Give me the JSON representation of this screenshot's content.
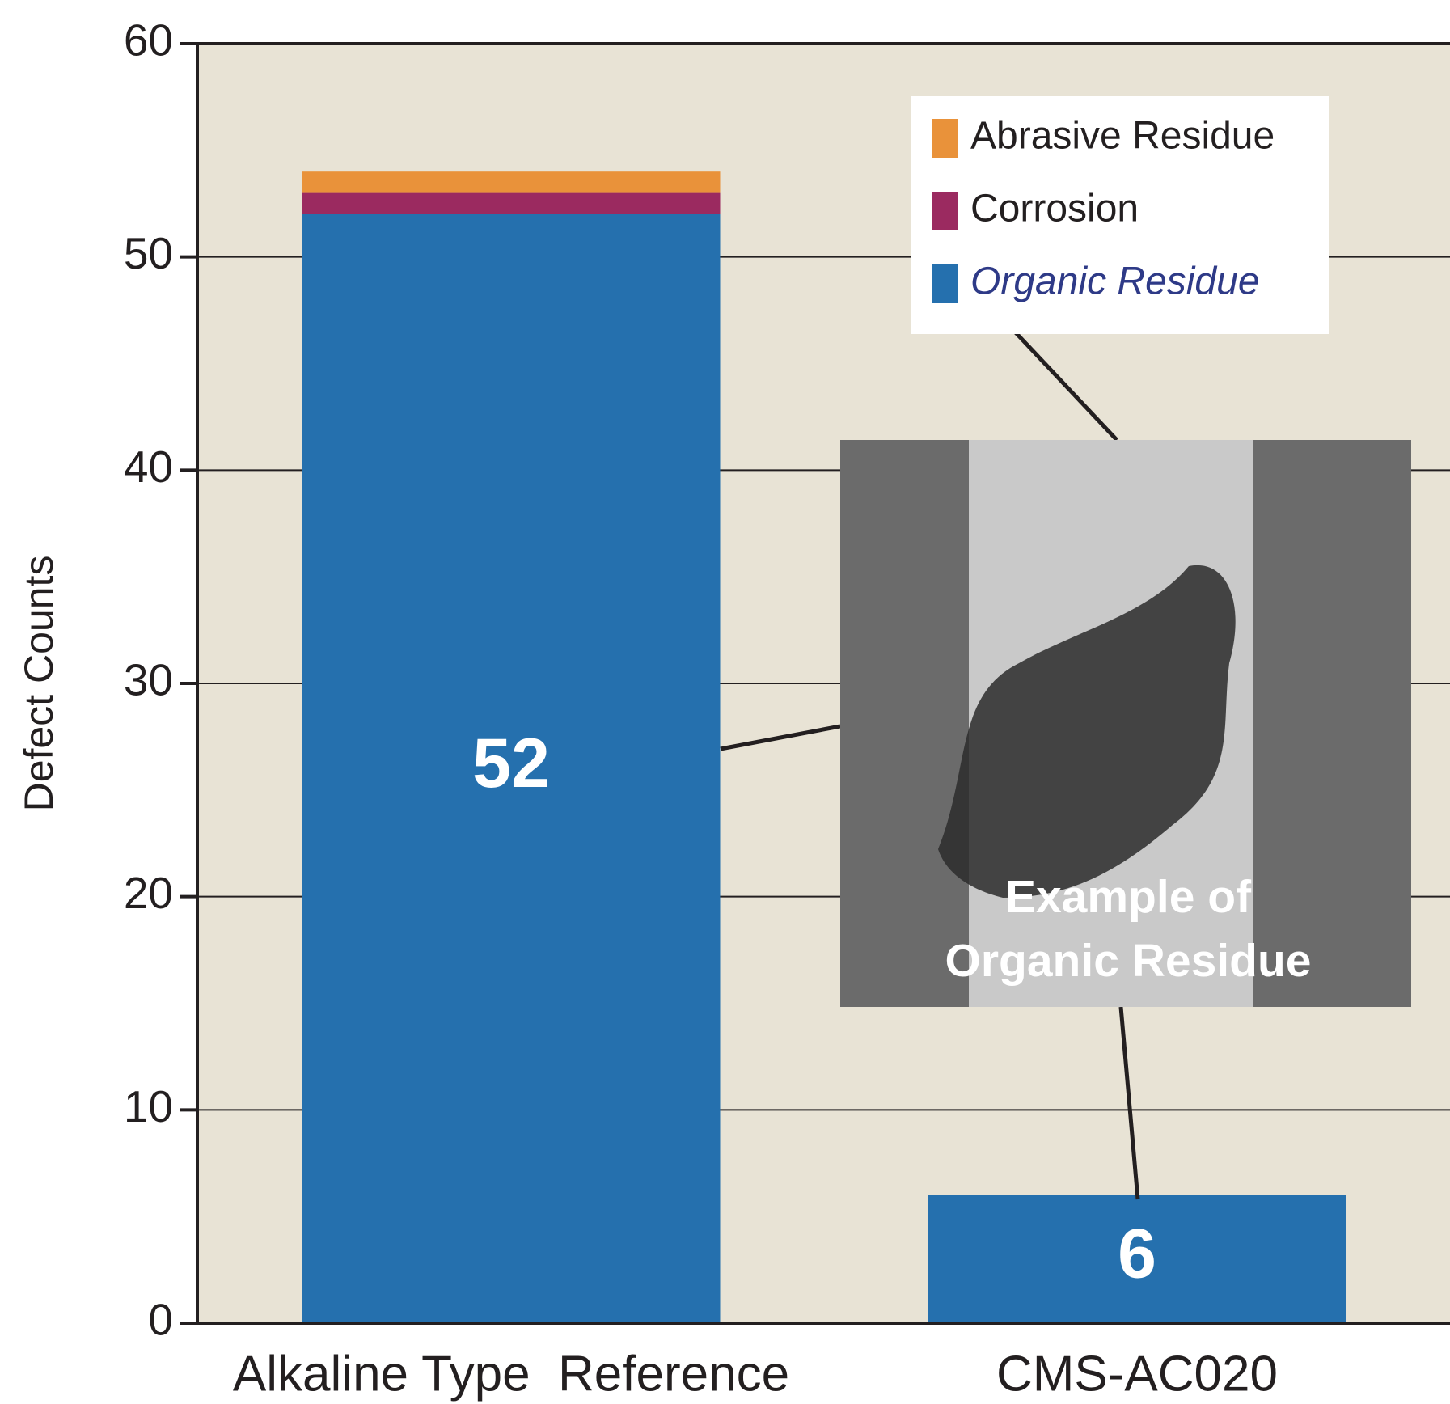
{
  "chart_data": {
    "type": "stacked-bar",
    "y_label": "Defect Counts",
    "categories": [
      "Alkaline Type  Reference",
      "CMS-AC020"
    ],
    "series": [
      {
        "name": "Organic Residue",
        "color": "#2570ae",
        "values": [
          52,
          6
        ]
      },
      {
        "name": "Corrosion",
        "color": "#9b2a60",
        "values": [
          1,
          0
        ]
      },
      {
        "name": "Abrasive Residue",
        "color": "#e9923a",
        "values": [
          1,
          0
        ]
      }
    ],
    "ylim": [
      0,
      60
    ],
    "yticks": [
      0,
      10,
      20,
      30,
      40,
      50,
      60
    ],
    "grid": true,
    "legend": "top-right",
    "annotation": [
      "Example of",
      "Organic Residue"
    ]
  }
}
